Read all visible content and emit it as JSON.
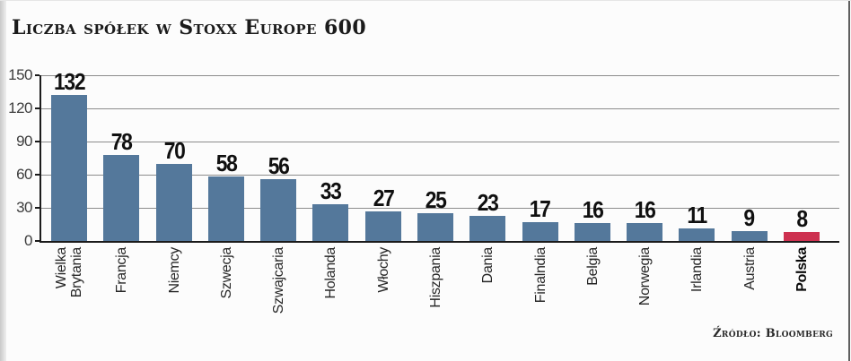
{
  "chart_data": {
    "type": "bar",
    "title": "Liczba spółek w Stoxx Europe 600",
    "categories": [
      "Wielka\nBrytania",
      "Francja",
      "Niemcy",
      "Szwecja",
      "Szwajcaria",
      "Holanda",
      "Włochy",
      "Hiszpania",
      "Dania",
      "Finalndia",
      "Belgia",
      "Norwegia",
      "Irlandia",
      "Austria",
      "Polska"
    ],
    "values": [
      132,
      78,
      70,
      58,
      56,
      33,
      27,
      25,
      23,
      17,
      16,
      16,
      11,
      9,
      8
    ],
    "ylim": [
      0,
      150
    ],
    "yticks": [
      0,
      30,
      60,
      90,
      120,
      150
    ],
    "grid": true,
    "legend_position": "none",
    "highlight_index": 14,
    "colors": {
      "bar": "#54789b",
      "highlight": "#cd3150",
      "grid": "#8c8c8c",
      "axis": "#1b1b1b"
    },
    "source": "Źródło: Bloomberg"
  }
}
